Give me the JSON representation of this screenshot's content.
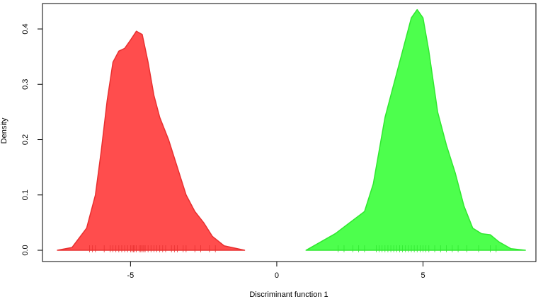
{
  "chart_data": {
    "type": "density",
    "xlabel": "Discriminant function 1",
    "ylabel": "Density",
    "xlim": [
      -8.01,
      8.86
    ],
    "ylim": [
      -0.0204,
      0.446
    ],
    "xticks": [
      -5,
      0,
      5
    ],
    "yticks": [
      {
        "value": 0,
        "label": "0.0"
      },
      {
        "value": 0.1,
        "label": "0.1"
      },
      {
        "value": 0.2,
        "label": "0.2"
      },
      {
        "value": 0.3,
        "label": "0.3"
      },
      {
        "value": 0.4,
        "label": "0.4"
      }
    ],
    "series": [
      {
        "color": "#ff4d4d",
        "line_color": "#e83030",
        "x": [
          -7.5,
          -7.0,
          -6.5,
          -6.2,
          -6.0,
          -5.8,
          -5.6,
          -5.4,
          -5.2,
          -5.0,
          -4.8,
          -4.6,
          -4.4,
          -4.2,
          -4.0,
          -3.7,
          -3.4,
          -3.1,
          -2.8,
          -2.5,
          -2.2,
          -1.8,
          -1.1
        ],
        "values": [
          0.0,
          0.005,
          0.04,
          0.1,
          0.18,
          0.27,
          0.34,
          0.36,
          0.365,
          0.38,
          0.396,
          0.39,
          0.34,
          0.28,
          0.24,
          0.2,
          0.15,
          0.1,
          0.07,
          0.05,
          0.025,
          0.008,
          0.0
        ],
        "rug": [
          -6.4,
          -6.3,
          -6.2,
          -5.9,
          -5.7,
          -5.6,
          -5.5,
          -5.4,
          -5.3,
          -5.2,
          -5.1,
          -5.0,
          -4.95,
          -4.9,
          -4.85,
          -4.8,
          -4.7,
          -4.65,
          -4.6,
          -4.55,
          -4.5,
          -4.4,
          -4.3,
          -4.2,
          -4.1,
          -4.0,
          -3.9,
          -3.8,
          -3.6,
          -3.5,
          -3.4,
          -3.2,
          -3.1,
          -2.8,
          -2.6,
          -2.3,
          -2.1
        ]
      },
      {
        "color": "#4dff4d",
        "line_color": "#30e830",
        "x": [
          1.0,
          2.0,
          2.5,
          3.0,
          3.3,
          3.5,
          3.7,
          4.0,
          4.3,
          4.6,
          4.8,
          5.0,
          5.2,
          5.5,
          5.8,
          6.1,
          6.4,
          6.7,
          7.0,
          7.3,
          7.6,
          8.0,
          8.5
        ],
        "values": [
          0.0,
          0.03,
          0.05,
          0.07,
          0.12,
          0.18,
          0.24,
          0.3,
          0.36,
          0.42,
          0.435,
          0.42,
          0.36,
          0.25,
          0.19,
          0.14,
          0.08,
          0.04,
          0.03,
          0.028,
          0.015,
          0.003,
          0.0
        ],
        "rug": [
          2.1,
          2.3,
          2.6,
          2.8,
          3.0,
          3.4,
          3.5,
          3.6,
          3.7,
          3.8,
          3.9,
          4.0,
          4.1,
          4.2,
          4.3,
          4.4,
          4.5,
          4.6,
          4.7,
          4.8,
          4.9,
          5.0,
          5.1,
          5.2,
          5.4,
          5.6,
          5.8,
          6.0,
          6.2,
          6.5,
          6.9,
          7.3,
          7.5
        ]
      }
    ]
  }
}
